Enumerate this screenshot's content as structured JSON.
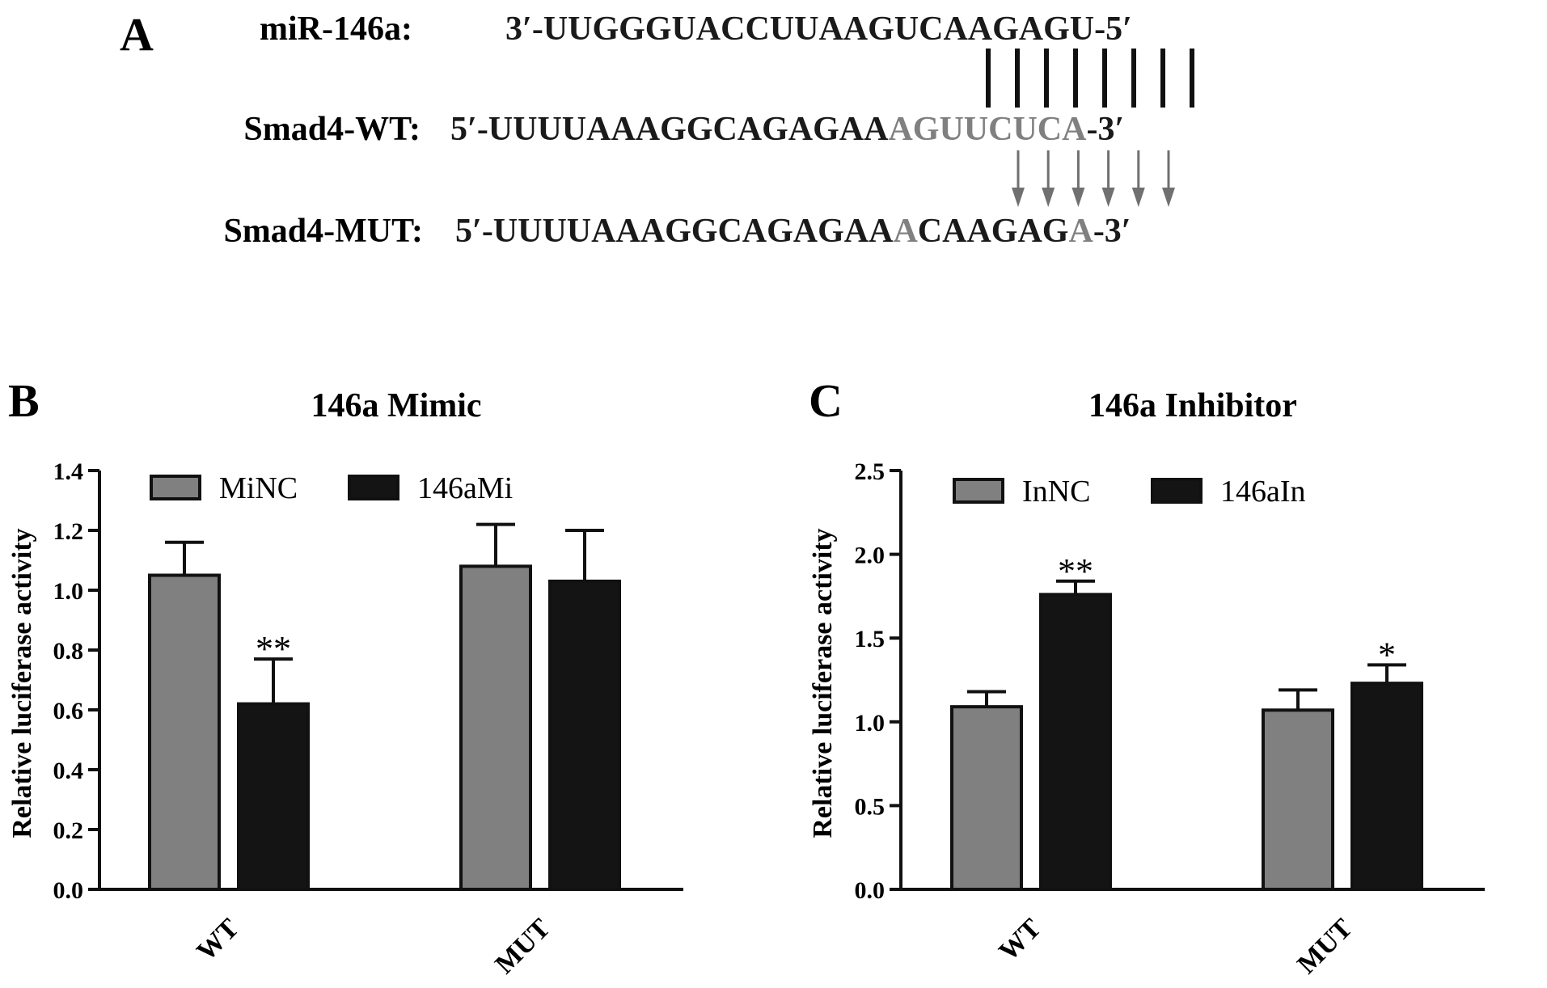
{
  "panel_a": {
    "label": "A",
    "rows": [
      {
        "label": "miR-146a:",
        "segments": [
          {
            "text": "3′-UUGGGUACCUUAAGUCAAGAGU-5′",
            "color": "#1a1a1a"
          }
        ]
      },
      {
        "label": "Smad4-WT:",
        "segments": [
          {
            "text": "5′-UUUUAAAGGCAGAGAA",
            "color": "#1a1a1a"
          },
          {
            "text": "AGUUCUCA",
            "color": "#808080"
          },
          {
            "text": "-3′",
            "color": "#1a1a1a"
          }
        ]
      },
      {
        "label": "Smad4-MUT:",
        "segments": [
          {
            "text": "5′-UUUUAAAGGCAGAGAA",
            "color": "#1a1a1a"
          },
          {
            "text": "A",
            "color": "#808080"
          },
          {
            "text": "CAAGAG",
            "color": "#1a1a1a"
          },
          {
            "text": "A",
            "color": "#808080"
          },
          {
            "text": "-3′",
            "color": "#1a1a1a"
          }
        ]
      }
    ],
    "pairing_lines": 8,
    "mutation_arrows": 6
  },
  "chart_data": [
    {
      "type": "bar",
      "panel_label": "B",
      "title": "146a Mimic",
      "xlabel": "",
      "ylabel": "Relative luciferase activity",
      "categories": [
        "WT",
        "MUT"
      ],
      "ylim": [
        0,
        1.4
      ],
      "yticks": [
        "0.0",
        "0.2",
        "0.4",
        "0.6",
        "0.8",
        "1.0",
        "1.2",
        "1.4"
      ],
      "legend_position": "top",
      "series": [
        {
          "name": "MiNC",
          "color": "#808080",
          "values": [
            1.05,
            1.08
          ],
          "errors": [
            0.11,
            0.14
          ],
          "significance": [
            "",
            ""
          ]
        },
        {
          "name": "146aMi",
          "color": "#141414",
          "values": [
            0.62,
            1.03
          ],
          "errors": [
            0.15,
            0.17
          ],
          "significance": [
            "**",
            ""
          ]
        }
      ]
    },
    {
      "type": "bar",
      "panel_label": "C",
      "title": "146a Inhibitor",
      "xlabel": "",
      "ylabel": "Relative luciferase activity",
      "categories": [
        "WT",
        "MUT"
      ],
      "ylim": [
        0,
        2.5
      ],
      "yticks": [
        "0.0",
        "0.5",
        "1.0",
        "1.5",
        "2.0",
        "2.5"
      ],
      "legend_position": "top",
      "series": [
        {
          "name": "InNC",
          "color": "#808080",
          "values": [
            1.09,
            1.07
          ],
          "errors": [
            0.09,
            0.12
          ],
          "significance": [
            "",
            ""
          ]
        },
        {
          "name": "146aIn",
          "color": "#141414",
          "values": [
            1.76,
            1.23
          ],
          "errors": [
            0.08,
            0.11
          ],
          "significance": [
            "**",
            "*"
          ]
        }
      ]
    }
  ]
}
